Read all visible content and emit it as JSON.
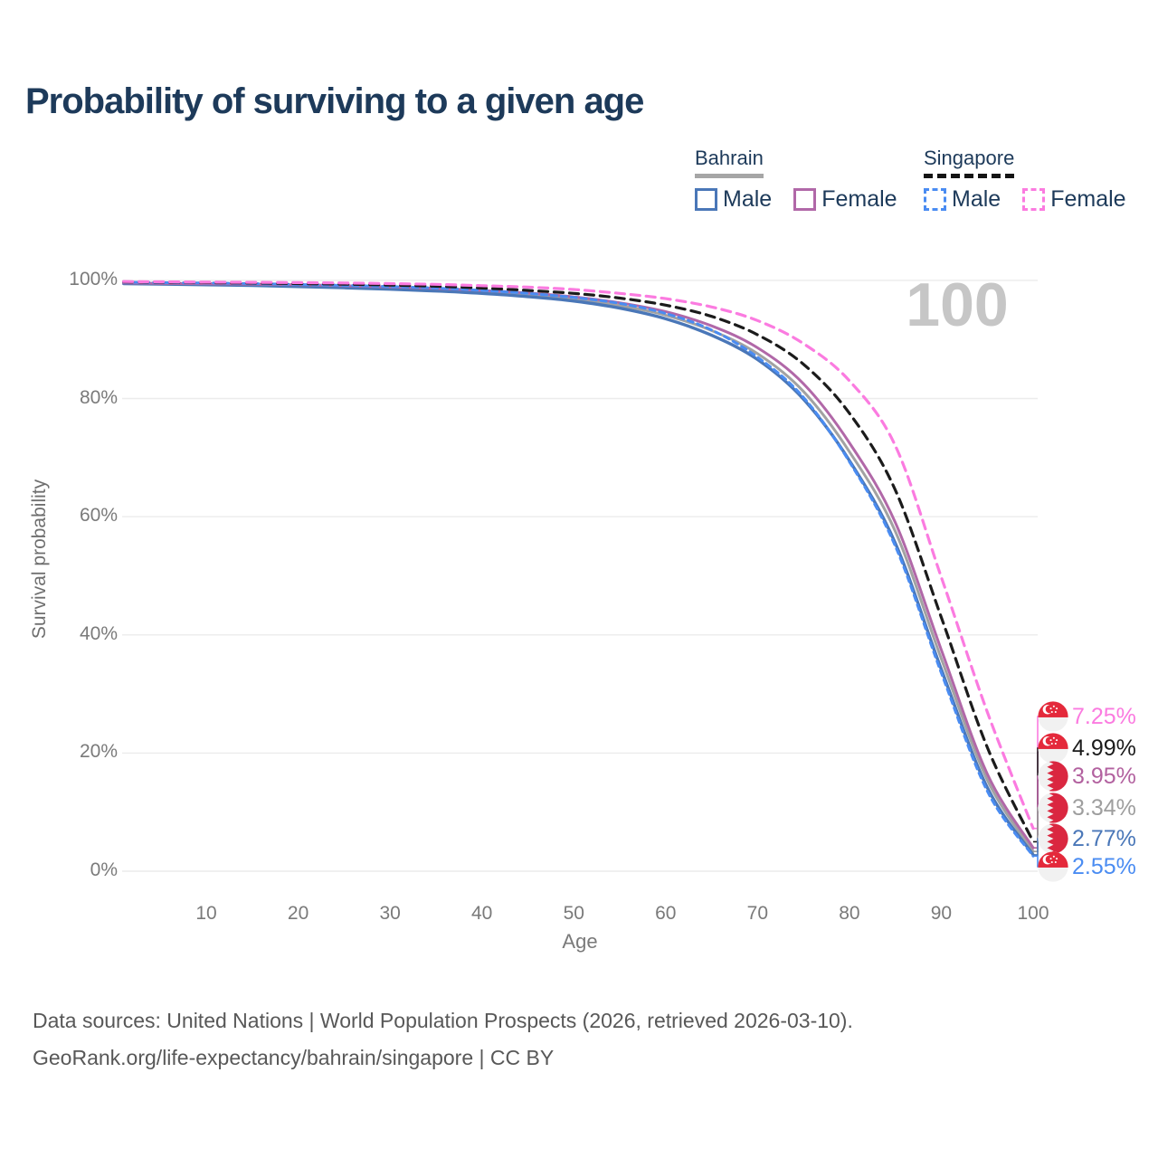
{
  "title": "Probability of surviving to a given age",
  "watermark": "100",
  "legend": {
    "groups": [
      {
        "name": "Bahrain",
        "underline_style": "solid",
        "underline_color": "#a6a6a6",
        "items": [
          {
            "label": "Male",
            "color": "#4a77b8",
            "line_style": "solid"
          },
          {
            "label": "Female",
            "color": "#b168a8",
            "line_style": "solid"
          }
        ]
      },
      {
        "name": "Singapore",
        "underline_style": "dashed",
        "underline_color": "#141414",
        "items": [
          {
            "label": "Male",
            "color": "#4a8cf2",
            "line_style": "dashed"
          },
          {
            "label": "Female",
            "color": "#fb7be0",
            "line_style": "dashed"
          }
        ]
      }
    ]
  },
  "chart_data": {
    "type": "line",
    "title": "Probability of surviving to a given age",
    "xlabel": "Age",
    "ylabel": "Survival probability",
    "xlim": [
      0,
      100
    ],
    "ylim": [
      0,
      100
    ],
    "grid": "horizontal",
    "legend_position": "top-right",
    "xticks": [
      10,
      20,
      30,
      40,
      50,
      60,
      70,
      80,
      90,
      100
    ],
    "yticks": [
      {
        "label": "0%",
        "value": 0
      },
      {
        "label": "20%",
        "value": 20
      },
      {
        "label": "40%",
        "value": 40
      },
      {
        "label": "60%",
        "value": 60
      },
      {
        "label": "80%",
        "value": 80
      },
      {
        "label": "100%",
        "value": 100
      }
    ],
    "x": [
      1,
      5,
      10,
      15,
      20,
      25,
      30,
      35,
      40,
      45,
      50,
      55,
      60,
      65,
      70,
      75,
      80,
      85,
      90,
      95,
      100
    ],
    "series": [
      {
        "id": "bahrain-both",
        "name": "Bahrain (both sexes)",
        "country": "bahrain",
        "color": "#a2a2a2",
        "line_style": "solid",
        "width": 3,
        "values": [
          99.5,
          99.42,
          99.32,
          99.22,
          99.1,
          98.92,
          98.7,
          98.42,
          98.05,
          97.55,
          96.85,
          95.75,
          94.1,
          91.5,
          87.6,
          81.2,
          71.0,
          57.5,
          36.0,
          15.5,
          3.34
        ]
      },
      {
        "id": "bahrain-male",
        "name": "Bahrain Male",
        "country": "bahrain",
        "color": "#4a77b8",
        "line_style": "solid",
        "width": 3.4,
        "values": [
          99.45,
          99.35,
          99.25,
          99.12,
          98.95,
          98.75,
          98.5,
          98.2,
          97.8,
          97.25,
          96.5,
          95.3,
          93.5,
          90.7,
          86.6,
          79.9,
          69.5,
          55.5,
          34.2,
          14.2,
          2.77
        ]
      },
      {
        "id": "bahrain-female",
        "name": "Bahrain Female",
        "country": "bahrain",
        "color": "#b168a8",
        "line_style": "solid",
        "width": 3,
        "values": [
          99.55,
          99.5,
          99.42,
          99.35,
          99.25,
          99.1,
          98.9,
          98.65,
          98.3,
          97.85,
          97.2,
          96.2,
          94.7,
          92.3,
          88.6,
          82.5,
          72.5,
          59.0,
          37.5,
          16.5,
          3.95
        ]
      },
      {
        "id": "singapore-male",
        "name": "Singapore Male",
        "country": "singapore",
        "color": "#4a8cf2",
        "line_style": "dashed",
        "width": 3,
        "values": [
          99.7,
          99.62,
          99.55,
          99.45,
          99.3,
          99.15,
          98.95,
          98.7,
          98.3,
          97.8,
          97.1,
          96.1,
          94.4,
          91.6,
          87.0,
          80.2,
          69.3,
          55.0,
          33.6,
          13.6,
          2.55
        ]
      },
      {
        "id": "singapore-both",
        "name": "Singapore (both sexes)",
        "country": "singapore",
        "color": "#1b1b1b",
        "line_style": "dashed",
        "width": 3.2,
        "values": [
          99.75,
          99.7,
          99.62,
          99.55,
          99.45,
          99.35,
          99.2,
          99.0,
          98.7,
          98.3,
          97.8,
          97.0,
          95.8,
          93.9,
          90.8,
          85.8,
          77.5,
          64.5,
          43.0,
          21.0,
          4.99
        ]
      },
      {
        "id": "singapore-female",
        "name": "Singapore Female",
        "country": "singapore",
        "color": "#fb7be0",
        "line_style": "dashed",
        "width": 3.2,
        "values": [
          99.8,
          99.75,
          99.7,
          99.67,
          99.62,
          99.55,
          99.45,
          99.32,
          99.1,
          98.85,
          98.45,
          97.8,
          96.9,
          95.5,
          93.2,
          89.3,
          83.0,
          72.0,
          49.8,
          27.0,
          7.25
        ]
      }
    ],
    "end_labels": [
      {
        "flag": "singapore",
        "text": "7.25%",
        "color": "#fb7be0",
        "end_value": 7.25
      },
      {
        "flag": "singapore",
        "text": "4.99%",
        "color": "#1b1b1b",
        "end_value": 4.99
      },
      {
        "flag": "bahrain",
        "text": "3.95%",
        "color": "#b2619f",
        "end_value": 3.95
      },
      {
        "flag": "bahrain",
        "text": "3.34%",
        "color": "#9e9e9e",
        "end_value": 3.34
      },
      {
        "flag": "bahrain",
        "text": "2.77%",
        "color": "#4a77b8",
        "end_value": 2.77
      },
      {
        "flag": "singapore",
        "text": "2.55%",
        "color": "#4a8cf2",
        "end_value": 2.55
      }
    ]
  },
  "footer": {
    "line1": "Data sources: United Nations | World Population Prospects (2026, retrieved 2026-03-10).",
    "line2": "GeoRank.org/life-expectancy/bahrain/singapore | CC BY"
  }
}
